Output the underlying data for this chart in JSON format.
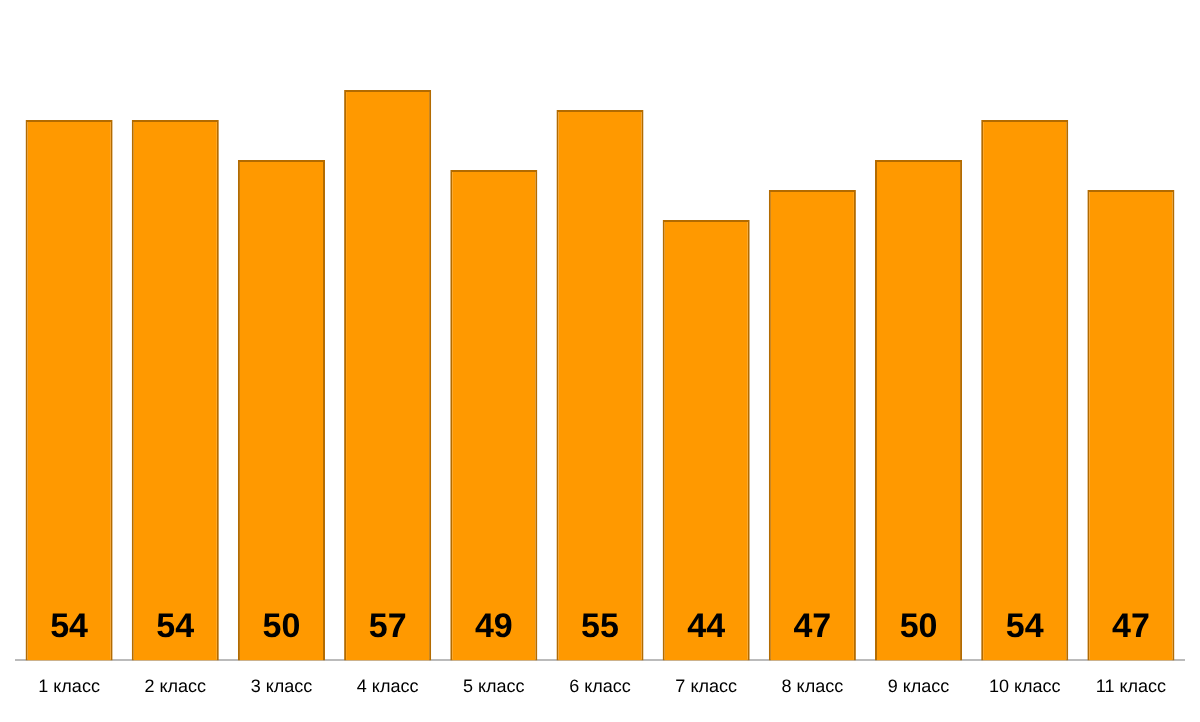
{
  "chart_data": {
    "type": "bar",
    "categories": [
      "1 класс",
      "2 класс",
      "3 класс",
      "4 класс",
      "5 класс",
      "6 класс",
      "7 класс",
      "8 класс",
      "9 класс",
      "10 класс",
      "11 класс"
    ],
    "values": [
      54,
      54,
      50,
      57,
      49,
      55,
      44,
      47,
      50,
      54,
      47
    ],
    "color": "#ff9900",
    "data_labels": true,
    "grid": false,
    "legend": false
  }
}
